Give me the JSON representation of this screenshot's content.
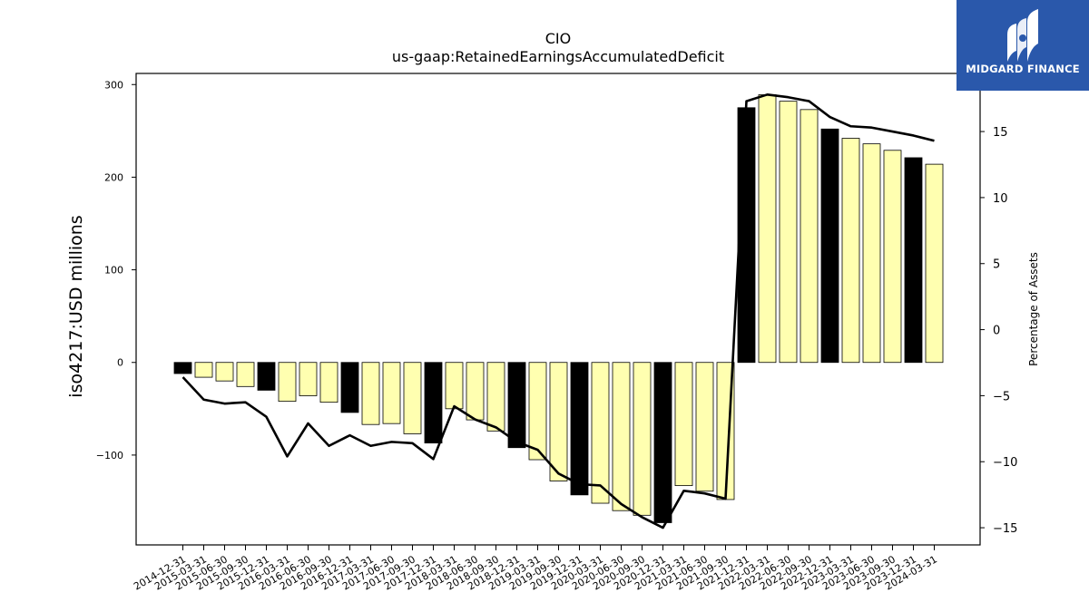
{
  "chart_data": {
    "type": "bar",
    "title": "CIO",
    "subtitle": "us-gaap:RetainedEarningsAccumulatedDeficit",
    "ylabel": "iso4217:USD  millions",
    "y2label": "Percentage of Assets",
    "ylim": [
      -197,
      312
    ],
    "y2lim": [
      -16.3,
      19.4
    ],
    "yticks": [
      -100,
      0,
      100,
      200,
      300
    ],
    "y2ticks": [
      -15,
      -10,
      -5,
      0,
      5,
      10,
      15
    ],
    "grid": false,
    "categories": [
      "2014-12-31",
      "2015-03-31",
      "2015-06-30",
      "2015-09-30",
      "2015-12-31",
      "2016-03-31",
      "2016-06-30",
      "2016-09-30",
      "2016-12-31",
      "2017-03-31",
      "2017-06-30",
      "2017-09-30",
      "2017-12-31",
      "2018-03-31",
      "2018-06-30",
      "2018-09-30",
      "2018-12-31",
      "2019-03-31",
      "2019-09-30",
      "2019-12-31",
      "2020-03-31",
      "2020-06-30",
      "2020-09-30",
      "2020-12-31",
      "2021-03-31",
      "2021-06-30",
      "2021-09-30",
      "2021-12-31",
      "2022-03-31",
      "2022-06-30",
      "2022-09-30",
      "2022-12-31",
      "2023-03-31",
      "2023-06-30",
      "2023-09-30",
      "2023-12-31",
      "2024-03-31"
    ],
    "series": [
      {
        "role": "bars",
        "values": [
          -12,
          -16,
          -20,
          -26,
          -30,
          -42,
          -36,
          -43,
          -54,
          -67,
          -66,
          -77,
          -87,
          -50,
          -62,
          -74,
          -92,
          -105,
          -128,
          -143,
          -152,
          -160,
          -165,
          -173,
          -133,
          -139,
          -148,
          275,
          289,
          282,
          273,
          252,
          242,
          236,
          229,
          221,
          214
        ],
        "highlight": [
          true,
          false,
          false,
          false,
          true,
          false,
          false,
          false,
          true,
          false,
          false,
          false,
          true,
          false,
          false,
          false,
          true,
          false,
          false,
          true,
          false,
          false,
          false,
          true,
          false,
          false,
          false,
          true,
          false,
          false,
          false,
          true,
          false,
          false,
          false,
          true,
          false
        ],
        "color": "#ffffb0",
        "highlight_color": "#000000"
      },
      {
        "role": "line",
        "axis": "right",
        "values": [
          -3.6,
          -5.3,
          -5.6,
          -5.5,
          -6.6,
          -9.6,
          -7.1,
          -8.8,
          -8.0,
          -8.8,
          -8.5,
          -8.6,
          -9.8,
          -5.8,
          -6.8,
          -7.4,
          -8.5,
          -9.1,
          -10.9,
          -11.7,
          -11.8,
          -13.2,
          -14.2,
          -15.0,
          -12.2,
          -12.4,
          -12.8,
          17.3,
          17.8,
          17.6,
          17.3,
          16.1,
          15.4,
          15.3,
          15.0,
          14.7,
          14.3
        ],
        "color": "#000000"
      }
    ]
  },
  "logo": {
    "text": "MIDGARD FINANCE",
    "bg": "#2a58ab"
  }
}
